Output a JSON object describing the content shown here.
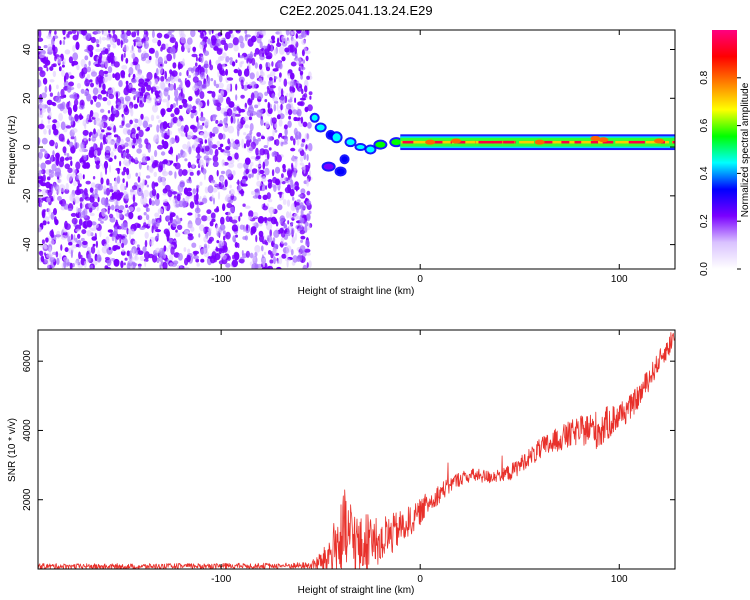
{
  "title": "C2E2.2025.041.13.24.E29",
  "chart_data": [
    {
      "type": "heatmap",
      "title": "C2E2.2025.041.13.24.E29",
      "xlabel": "Height of straight line (km)",
      "ylabel": "Frequency (Hz)",
      "xlim": [
        -192,
        128
      ],
      "ylim": [
        -50,
        48
      ],
      "xticks": [
        -100,
        0,
        100
      ],
      "xtick_labels": [
        "-100",
        "0",
        "100"
      ],
      "yticks": [
        -40,
        -20,
        0,
        20,
        40
      ],
      "ytick_labels": [
        "-40",
        "-20",
        "0",
        "20",
        "40"
      ],
      "noise_region_x": [
        -192,
        -55
      ],
      "signal_band_hz": [
        0,
        4
      ],
      "colorbar": {
        "label": "Normalized spectral amplitude",
        "range": [
          0,
          1
        ],
        "ticks": [
          0.0,
          0.2,
          0.4,
          0.6,
          0.8
        ],
        "tick_labels": [
          "0.0",
          "0.2",
          "0.4",
          "0.6",
          "0.8"
        ],
        "colors": [
          "#ffffff",
          "#d9c2ff",
          "#7a00ff",
          "#0000ff",
          "#00ffff",
          "#00ff00",
          "#ffff00",
          "#ff8000",
          "#ff0000",
          "#ff0080"
        ]
      }
    },
    {
      "type": "line",
      "xlabel": "Height of straight line (km)",
      "ylabel": "SNR (10 * v/v)",
      "xlim": [
        -192,
        128
      ],
      "ylim": [
        0,
        6900
      ],
      "xticks": [
        -100,
        0,
        100
      ],
      "xtick_labels": [
        "-100",
        "0",
        "100"
      ],
      "yticks": [
        2000,
        4000,
        6000
      ],
      "ytick_labels": [
        "2000",
        "4000",
        "6000"
      ],
      "color": "#e8302a",
      "series": [
        {
          "name": "SNR",
          "x": [
            -192,
            -170,
            -150,
            -130,
            -110,
            -90,
            -70,
            -55,
            -48,
            -42,
            -38,
            -34,
            -30,
            -26,
            -22,
            -18,
            -14,
            -10,
            -6,
            -2,
            2,
            6,
            10,
            14,
            18,
            22,
            26,
            30,
            34,
            38,
            42,
            46,
            50,
            54,
            58,
            62,
            66,
            70,
            74,
            78,
            82,
            86,
            90,
            94,
            98,
            102,
            106,
            110,
            114,
            118,
            122,
            126,
            128
          ],
          "values": [
            80,
            75,
            70,
            80,
            85,
            90,
            95,
            100,
            250,
            700,
            900,
            950,
            600,
            800,
            750,
            900,
            1000,
            1200,
            1350,
            1500,
            1800,
            2000,
            2200,
            2400,
            2550,
            2650,
            2700,
            2700,
            2650,
            2700,
            2750,
            2800,
            3000,
            3200,
            3350,
            3500,
            3650,
            3750,
            3850,
            3950,
            4000,
            4050,
            4000,
            4200,
            4350,
            4500,
            4700,
            5000,
            5400,
            5800,
            6200,
            6500,
            6600
          ],
          "noise_amplitude": [
            80,
            80,
            80,
            80,
            80,
            80,
            80,
            100,
            400,
            900,
            1400,
            1000,
            900,
            900,
            700,
            700,
            600,
            500,
            450,
            400,
            350,
            300,
            280,
            250,
            220,
            200,
            200,
            200,
            200,
            200,
            200,
            250,
            250,
            250,
            300,
            350,
            350,
            350,
            400,
            400,
            450,
            500,
            600,
            500,
            450,
            400,
            350,
            350,
            350,
            300,
            300,
            300,
            300
          ]
        }
      ]
    }
  ]
}
